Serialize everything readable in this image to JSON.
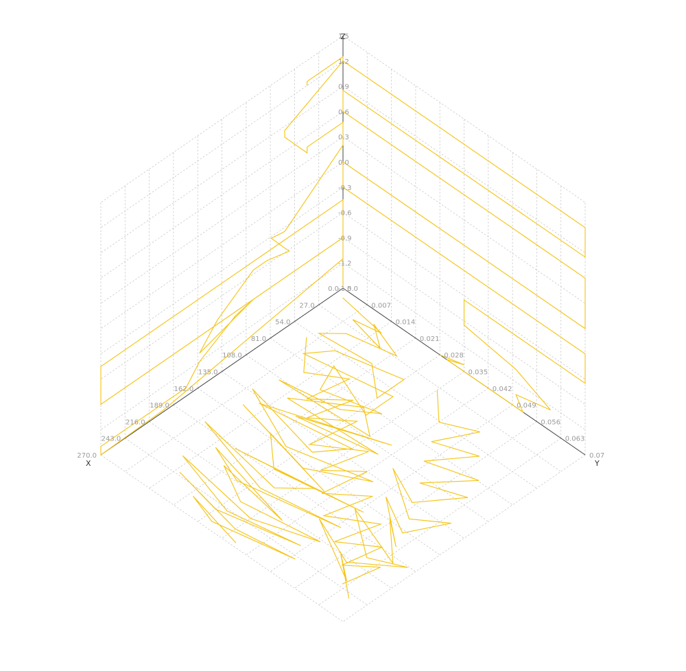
{
  "chart_data": {
    "type": "line",
    "projection": "isometric-3d",
    "grid": true,
    "legend": "none",
    "colors": {
      "series": "#f5c518",
      "axis": "#444444",
      "grid": "#c8c8c8",
      "tick_text": "#9a9a9a"
    },
    "axes": {
      "x": {
        "label": "X",
        "range": [
          0,
          270
        ],
        "ticks": [
          "0.0",
          "27.0",
          "54.0",
          "81.0",
          "108.0",
          "135.0",
          "162.0",
          "189.0",
          "216.0",
          "243.0",
          "270.0"
        ]
      },
      "y": {
        "label": "Y",
        "range": [
          0,
          0.07
        ],
        "ticks": [
          "0.0",
          "0.007",
          "0.014",
          "0.021",
          "0.028",
          "0.035",
          "0.042",
          "0.049",
          "0.056",
          "0.063",
          "0.07"
        ]
      },
      "z": {
        "label": "Z",
        "range": [
          -1.5,
          1.5
        ],
        "ticks": [
          "-1.5",
          "-1.2",
          "-0.9",
          "-0.6",
          "-0.3",
          "0.0",
          "0.3",
          "0.6",
          "0.9",
          "1.2",
          "1.5"
        ]
      }
    },
    "series": [
      {
        "color": "#f5c518",
        "wall_xz_traces": [
          [
            [
              40,
              1.2
            ],
            [
              40,
              1.25
            ],
            [
              0,
              1.25
            ],
            [
              0,
              1.2
            ],
            [
              65,
              0.85
            ],
            [
              65,
              0.77
            ],
            [
              40,
              0.4
            ],
            [
              40,
              0.47
            ],
            [
              0,
              0.47
            ],
            [
              0,
              0.2
            ],
            [
              65,
              -0.35
            ],
            [
              80,
              -0.32
            ],
            [
              60,
              -0.62
            ],
            [
              85,
              -0.55
            ],
            [
              100,
              -0.55
            ],
            [
              140,
              -0.85
            ],
            [
              160,
              -1.1
            ],
            [
              100,
              -0.9
            ],
            [
              120,
              -0.95
            ],
            [
              160,
              -1.2
            ],
            [
              175,
              -1.4
            ],
            [
              270,
              -1.4
            ],
            [
              270,
              -1.5
            ],
            [
              200,
              -1.48
            ],
            [
              0,
              -1.15
            ],
            [
              0,
              -0.45
            ],
            [
              270,
              -0.45
            ],
            [
              270,
              -0.9
            ],
            [
              0,
              -0.9
            ],
            [
              0,
              -1.48
            ]
          ]
        ],
        "wall_yz_traces": [
          [
            [
              0.0,
              1.2
            ],
            [
              0.07,
              1.2
            ],
            [
              0.07,
              0.85
            ],
            [
              0.0,
              0.85
            ],
            [
              0.0,
              0.6
            ],
            [
              0.07,
              0.6
            ],
            [
              0.07,
              0.0
            ],
            [
              0.0,
              0.0
            ],
            [
              0.0,
              -0.3
            ],
            [
              0.07,
              -0.3
            ],
            [
              0.07,
              -0.65
            ],
            [
              0.035,
              -0.65
            ],
            [
              0.035,
              -0.95
            ],
            [
              0.05,
              -1.05
            ],
            [
              0.06,
              -1.25
            ],
            [
              0.05,
              -1.35
            ],
            [
              0.052,
              -1.5
            ],
            [
              0.03,
              -1.5
            ],
            [
              0.035,
              -1.42
            ],
            [
              0.028,
              -1.5
            ]
          ]
        ],
        "floor_xy_traces": [
          [
            [
              8,
              0.002
            ],
            [
              15,
              0.015
            ],
            [
              20,
              0.008
            ],
            [
              28,
              0.018
            ],
            [
              12,
              0.012
            ],
            [
              25,
              0.022
            ],
            [
              35,
              0.01
            ],
            [
              50,
              0.006
            ],
            [
              45,
              0.02
            ],
            [
              70,
              0.028
            ],
            [
              40,
              0.028
            ],
            [
              55,
              0.012
            ],
            [
              75,
              0.008
            ],
            [
              60,
              0.03
            ],
            [
              90,
              0.03
            ],
            [
              68,
              0.015
            ],
            [
              95,
              0.018
            ],
            [
              80,
              0.032
            ],
            [
              100,
              0.025
            ],
            [
              110,
              0.01
            ],
            [
              105,
              0.035
            ],
            [
              85,
              0.028
            ],
            [
              120,
              0.015
            ],
            [
              115,
              0.04
            ],
            [
              130,
              0.02
            ],
            [
              100,
              0.04
            ],
            [
              140,
              0.012
            ],
            [
              125,
              0.035
            ],
            [
              150,
              0.03
            ],
            [
              132,
              0.008
            ],
            [
              160,
              0.025
            ],
            [
              140,
              0.045
            ],
            [
              168,
              0.032
            ],
            [
              150,
              0.01
            ],
            [
              175,
              0.04
            ],
            [
              158,
              0.02
            ],
            [
              185,
              0.028
            ],
            [
              170,
              0.05
            ],
            [
              190,
              0.018
            ],
            [
              178,
              0.038
            ],
            [
              200,
              0.032
            ],
            [
              185,
              0.008
            ],
            [
              208,
              0.03
            ],
            [
              195,
              0.05
            ],
            [
              215,
              0.025
            ],
            [
              200,
              0.015
            ],
            [
              222,
              0.04
            ],
            [
              210,
              0.02
            ],
            [
              230,
              0.03
            ],
            [
              218,
              0.05
            ],
            [
              238,
              0.035
            ],
            [
              225,
              0.012
            ],
            [
              245,
              0.03
            ],
            [
              232,
              0.048
            ],
            [
              250,
              0.028
            ],
            [
              240,
              0.015
            ],
            [
              255,
              0.035
            ],
            [
              246,
              0.05
            ],
            [
              262,
              0.03
            ],
            [
              252,
              0.022
            ],
            [
              266,
              0.038
            ]
          ],
          [
            [
              30,
              0.035
            ],
            [
              55,
              0.042
            ],
            [
              40,
              0.05
            ],
            [
              75,
              0.045
            ],
            [
              60,
              0.055
            ],
            [
              95,
              0.048
            ],
            [
              80,
              0.06
            ],
            [
              115,
              0.052
            ],
            [
              100,
              0.062
            ],
            [
              135,
              0.055
            ],
            [
              118,
              0.045
            ],
            [
              150,
              0.058
            ],
            [
              130,
              0.065
            ],
            [
              165,
              0.06
            ],
            [
              145,
              0.05
            ],
            [
              180,
              0.062
            ],
            [
              160,
              0.055
            ],
            [
              195,
              0.065
            ],
            [
              172,
              0.048
            ],
            [
              205,
              0.06
            ],
            [
              190,
              0.068
            ],
            [
              220,
              0.058
            ],
            [
              200,
              0.045
            ],
            [
              235,
              0.062
            ],
            [
              215,
              0.055
            ],
            [
              248,
              0.066
            ]
          ],
          [
            [
              60,
              0.005
            ],
            [
              90,
              0.012
            ],
            [
              70,
              0.02
            ],
            [
              110,
              0.018
            ],
            [
              85,
              0.025
            ],
            [
              125,
              0.022
            ],
            [
              100,
              0.03
            ],
            [
              145,
              0.028
            ],
            [
              118,
              0.038
            ],
            [
              160,
              0.035
            ],
            [
              135,
              0.042
            ],
            [
              178,
              0.04
            ],
            [
              152,
              0.048
            ],
            [
              195,
              0.045
            ],
            [
              170,
              0.055
            ],
            [
              210,
              0.052
            ],
            [
              188,
              0.06
            ],
            [
              225,
              0.058
            ],
            [
              205,
              0.064
            ],
            [
              240,
              0.062
            ]
          ]
        ]
      }
    ]
  }
}
